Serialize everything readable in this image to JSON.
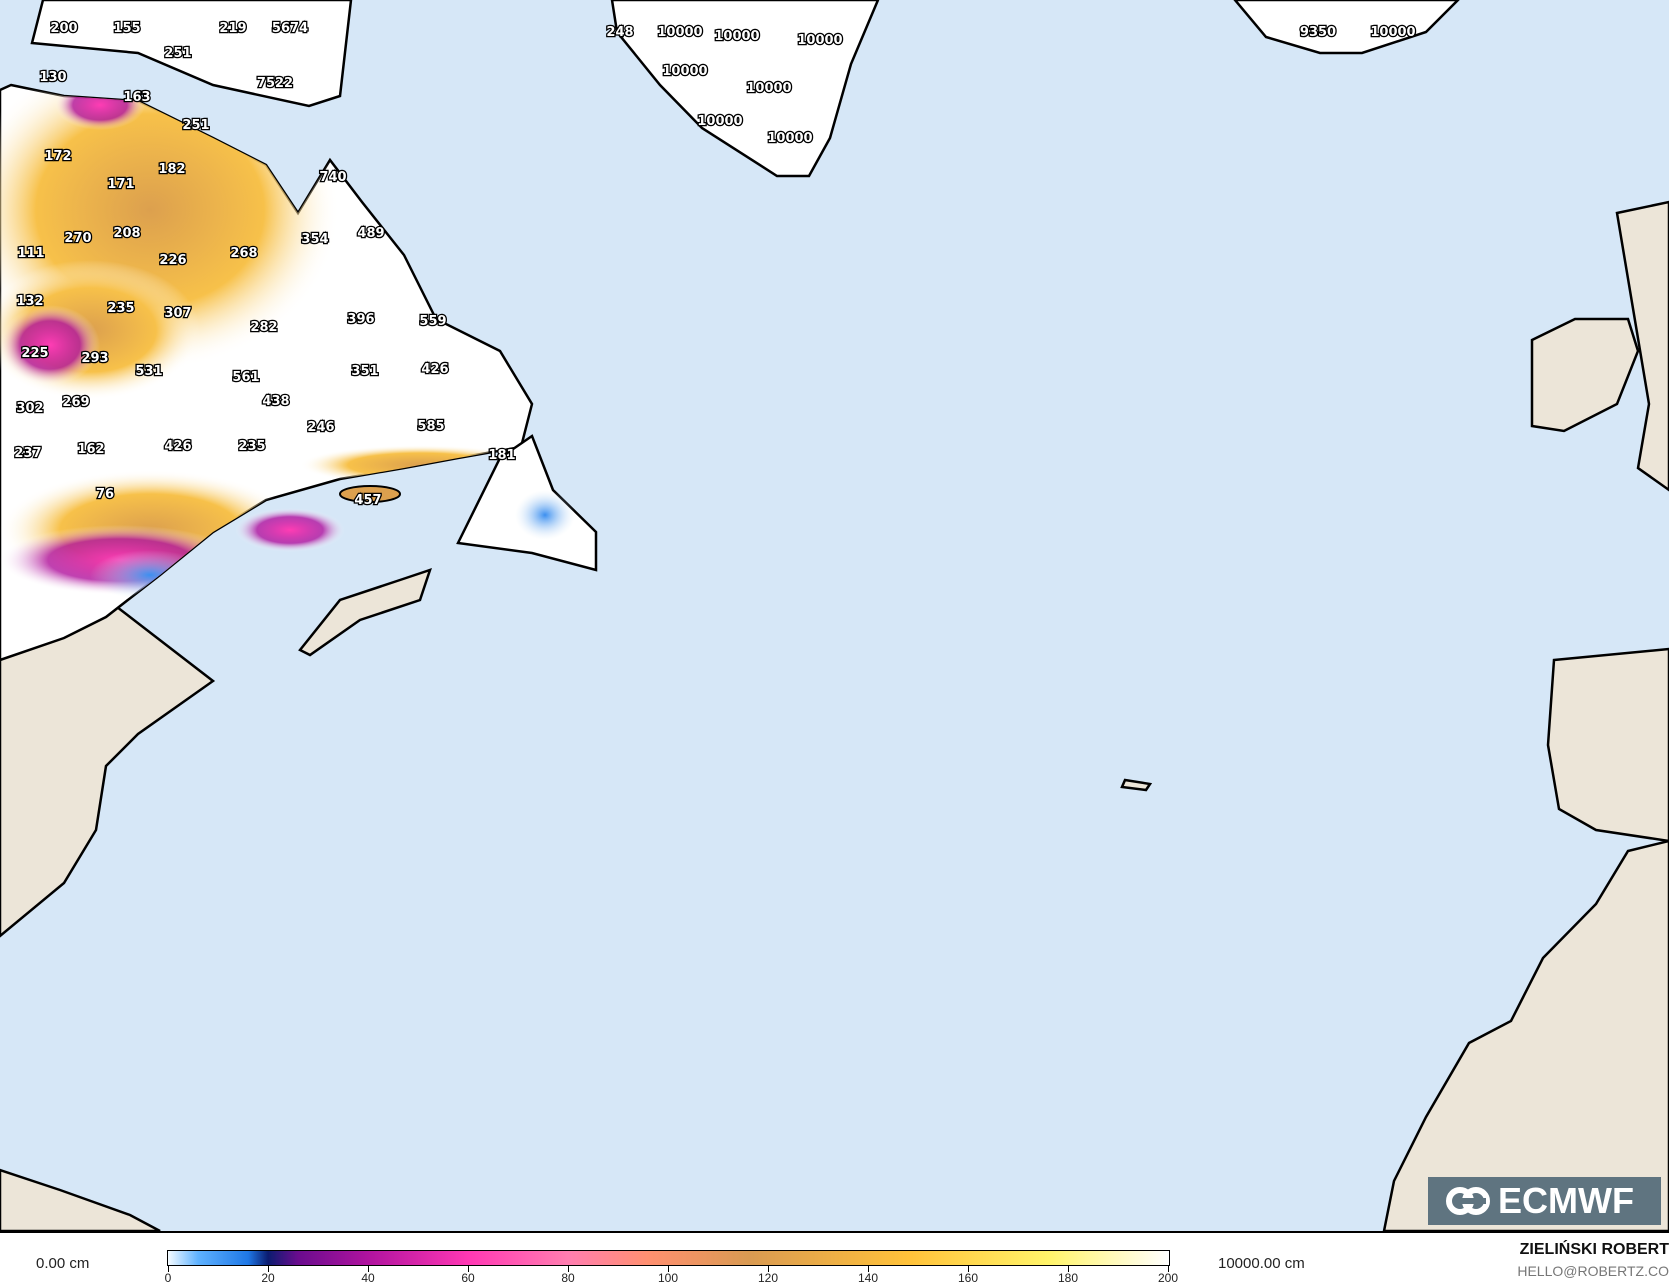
{
  "map": {
    "colors": {
      "ocean": "#d6e7f7",
      "land": "#ece5d8",
      "coast": "#000000",
      "snow": "#ffffff"
    },
    "labels": [
      "200",
      "155",
      "219",
      "5674",
      "251",
      "7522",
      "130",
      "163",
      "251",
      "172",
      "182",
      "171",
      "740",
      "489",
      "354",
      "270",
      "208",
      "111",
      "226",
      "268",
      "132",
      "235",
      "307",
      "396",
      "559",
      "282",
      "225",
      "293",
      "531",
      "561",
      "351",
      "426",
      "302",
      "269",
      "438",
      "246",
      "585",
      "237",
      "162",
      "426",
      "235",
      "181",
      "76",
      "457",
      "248",
      "10000",
      "10000",
      "10000",
      "10000",
      "10000",
      "10000",
      "10000",
      "9350",
      "10000"
    ]
  },
  "logo": {
    "text": "ECMWF",
    "icon": "ecmwf-logo-icon"
  },
  "legend": {
    "min_label": "0.00 cm",
    "max_label": "10000.00 cm",
    "ticks": [
      "0",
      "20",
      "40",
      "60",
      "80",
      "100",
      "120",
      "140",
      "160",
      "180",
      "200"
    ]
  },
  "credit": {
    "author": "ZIELIŃSKI ROBERT",
    "email": "HELLO@ROBERTZ.CO"
  }
}
